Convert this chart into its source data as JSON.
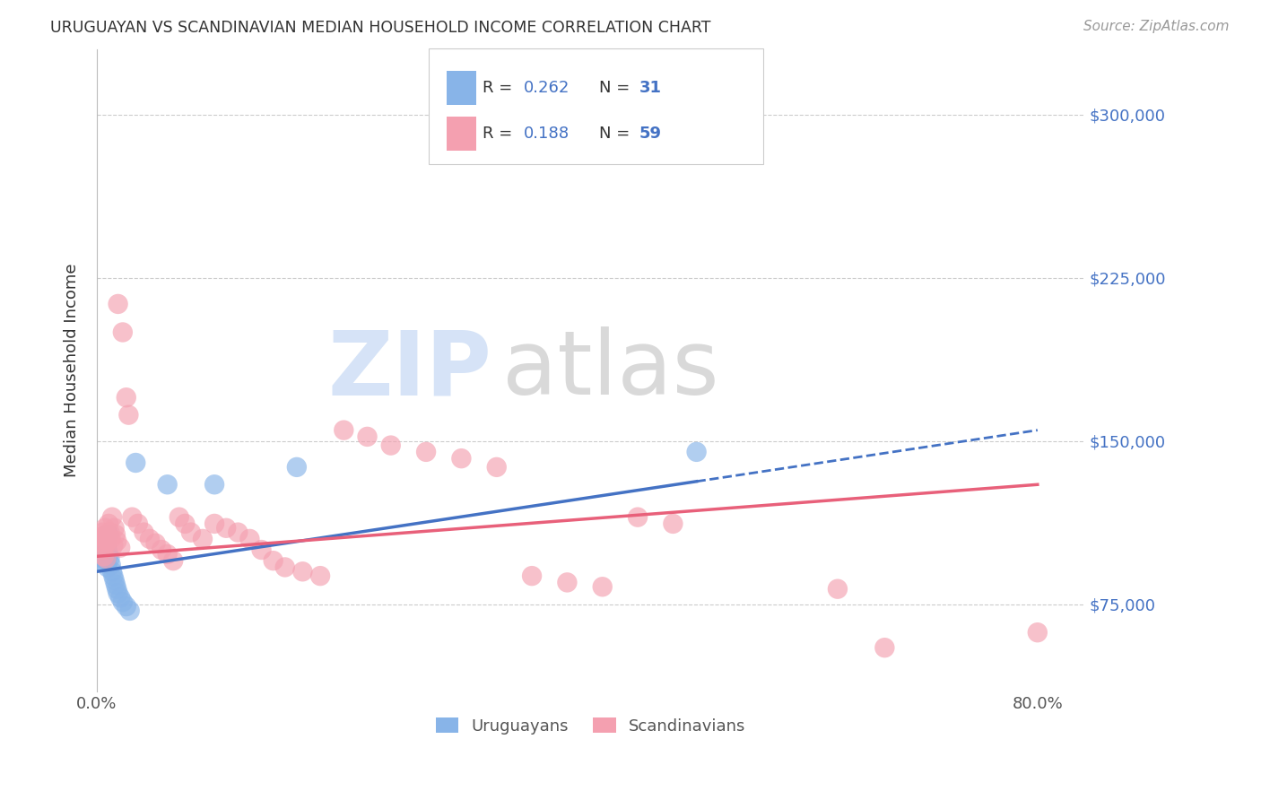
{
  "title": "URUGUAYAN VS SCANDINAVIAN MEDIAN HOUSEHOLD INCOME CORRELATION CHART",
  "source": "Source: ZipAtlas.com",
  "ylabel": "Median Household Income",
  "yticks": [
    75000,
    150000,
    225000,
    300000
  ],
  "ytick_labels": [
    "$75,000",
    "$150,000",
    "$225,000",
    "$300,000"
  ],
  "legend_r1": "0.262",
  "legend_n1": "31",
  "legend_r2": "0.188",
  "legend_n2": "59",
  "uruguayan_color": "#88b4e8",
  "scandinavian_color": "#f4a0b0",
  "uruguayan_trend_color": "#4472c4",
  "scandinavian_trend_color": "#e8607a",
  "uruguayan_scatter": [
    [
      0.003,
      100000
    ],
    [
      0.004,
      98000
    ],
    [
      0.005,
      103000
    ],
    [
      0.005,
      96000
    ],
    [
      0.006,
      101000
    ],
    [
      0.006,
      94000
    ],
    [
      0.007,
      99000
    ],
    [
      0.007,
      97000
    ],
    [
      0.008,
      104000
    ],
    [
      0.008,
      95000
    ],
    [
      0.009,
      100000
    ],
    [
      0.009,
      92000
    ],
    [
      0.01,
      98000
    ],
    [
      0.01,
      107000
    ],
    [
      0.011,
      96000
    ],
    [
      0.012,
      93000
    ],
    [
      0.013,
      90000
    ],
    [
      0.014,
      88000
    ],
    [
      0.015,
      86000
    ],
    [
      0.016,
      84000
    ],
    [
      0.017,
      82000
    ],
    [
      0.018,
      80000
    ],
    [
      0.02,
      78000
    ],
    [
      0.022,
      76000
    ],
    [
      0.025,
      74000
    ],
    [
      0.028,
      72000
    ],
    [
      0.033,
      140000
    ],
    [
      0.06,
      130000
    ],
    [
      0.1,
      130000
    ],
    [
      0.17,
      138000
    ],
    [
      0.51,
      145000
    ]
  ],
  "scandinavian_scatter": [
    [
      0.003,
      103000
    ],
    [
      0.004,
      106000
    ],
    [
      0.005,
      100000
    ],
    [
      0.005,
      108000
    ],
    [
      0.006,
      105000
    ],
    [
      0.006,
      97000
    ],
    [
      0.007,
      110000
    ],
    [
      0.007,
      102000
    ],
    [
      0.008,
      107000
    ],
    [
      0.008,
      96000
    ],
    [
      0.009,
      104000
    ],
    [
      0.01,
      112000
    ],
    [
      0.011,
      108000
    ],
    [
      0.012,
      105000
    ],
    [
      0.013,
      115000
    ],
    [
      0.014,
      102000
    ],
    [
      0.015,
      110000
    ],
    [
      0.016,
      107000
    ],
    [
      0.017,
      104000
    ],
    [
      0.018,
      213000
    ],
    [
      0.02,
      101000
    ],
    [
      0.022,
      200000
    ],
    [
      0.025,
      170000
    ],
    [
      0.027,
      162000
    ],
    [
      0.03,
      115000
    ],
    [
      0.035,
      112000
    ],
    [
      0.04,
      108000
    ],
    [
      0.045,
      105000
    ],
    [
      0.05,
      103000
    ],
    [
      0.055,
      100000
    ],
    [
      0.06,
      98000
    ],
    [
      0.065,
      95000
    ],
    [
      0.07,
      115000
    ],
    [
      0.075,
      112000
    ],
    [
      0.08,
      108000
    ],
    [
      0.09,
      105000
    ],
    [
      0.1,
      112000
    ],
    [
      0.11,
      110000
    ],
    [
      0.12,
      108000
    ],
    [
      0.13,
      105000
    ],
    [
      0.14,
      100000
    ],
    [
      0.15,
      95000
    ],
    [
      0.16,
      92000
    ],
    [
      0.175,
      90000
    ],
    [
      0.19,
      88000
    ],
    [
      0.21,
      155000
    ],
    [
      0.23,
      152000
    ],
    [
      0.25,
      148000
    ],
    [
      0.28,
      145000
    ],
    [
      0.31,
      142000
    ],
    [
      0.34,
      138000
    ],
    [
      0.37,
      88000
    ],
    [
      0.4,
      85000
    ],
    [
      0.43,
      83000
    ],
    [
      0.46,
      115000
    ],
    [
      0.49,
      112000
    ],
    [
      0.63,
      82000
    ],
    [
      0.67,
      55000
    ],
    [
      0.8,
      62000
    ]
  ],
  "uru_trend": [
    0.0,
    0.8,
    90000,
    155000
  ],
  "scan_trend": [
    0.0,
    0.8,
    97000,
    130000
  ],
  "xlim": [
    0.0,
    0.84
  ],
  "ylim": [
    35000,
    330000
  ],
  "background_color": "#ffffff",
  "grid_color": "#cccccc"
}
